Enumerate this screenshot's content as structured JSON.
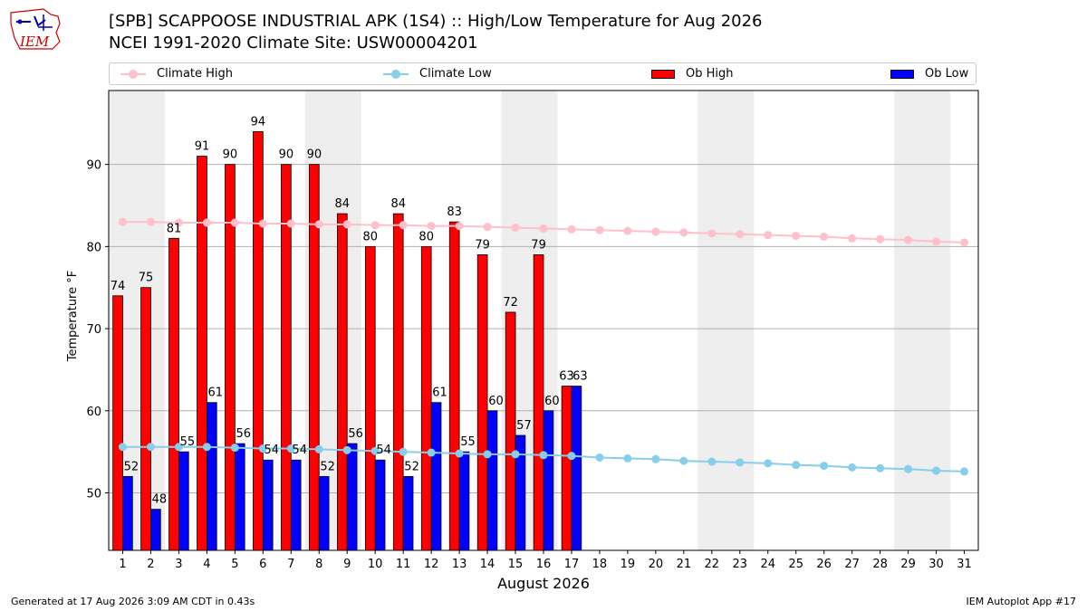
{
  "header": {
    "title_line1": "[SPB] SCAPPOOSE INDUSTRIAL APK (1S4) :: High/Low Temperature for Aug 2026",
    "title_line2": "NCEI 1991-2020 Climate Site: USW00004201",
    "logo_text": "IEM"
  },
  "footer": {
    "left": "Generated at 17 Aug 2026 3:09 AM CDT in 0.43s",
    "right": "IEM Autoplot App #17"
  },
  "colors": {
    "ob_high": "#ff0000",
    "ob_low": "#0000ff",
    "climate_high": "#ffc0cb",
    "climate_low": "#87ceeb",
    "weekend_band": "#eeeeee",
    "grid": "#b0b0b0"
  },
  "legend": {
    "climate_high": "Climate High",
    "climate_low": "Climate Low",
    "ob_high": "Ob High",
    "ob_low": "Ob Low"
  },
  "chart_data": {
    "type": "bar",
    "xlabel": "August 2026",
    "ylabel": "Temperature °F",
    "ylim": [
      43,
      99
    ],
    "yticks": [
      50,
      60,
      70,
      80,
      90
    ],
    "grid": "horizontal",
    "legend_position": "top",
    "days": [
      1,
      2,
      3,
      4,
      5,
      6,
      7,
      8,
      9,
      10,
      11,
      12,
      13,
      14,
      15,
      16,
      17,
      18,
      19,
      20,
      21,
      22,
      23,
      24,
      25,
      26,
      27,
      28,
      29,
      30,
      31
    ],
    "weekend_bands": [
      [
        1,
        2
      ],
      [
        8,
        9
      ],
      [
        15,
        16
      ],
      [
        22,
        23
      ],
      [
        29,
        30
      ]
    ],
    "series": [
      {
        "name": "Ob High",
        "type": "bar",
        "values": [
          74,
          75,
          81,
          91,
          90,
          94,
          90,
          90,
          84,
          80,
          84,
          80,
          83,
          79,
          72,
          79,
          63
        ]
      },
      {
        "name": "Ob Low",
        "type": "bar",
        "values": [
          52,
          48,
          55,
          61,
          56,
          54,
          54,
          52,
          56,
          54,
          52,
          61,
          55,
          60,
          57,
          60,
          63
        ]
      },
      {
        "name": "Climate High",
        "type": "line",
        "values": [
          83.0,
          83.0,
          82.9,
          82.9,
          82.9,
          82.8,
          82.8,
          82.7,
          82.7,
          82.6,
          82.6,
          82.5,
          82.5,
          82.4,
          82.3,
          82.2,
          82.1,
          82.0,
          81.9,
          81.8,
          81.7,
          81.6,
          81.5,
          81.4,
          81.3,
          81.2,
          81.0,
          80.9,
          80.8,
          80.6,
          80.5
        ]
      },
      {
        "name": "Climate Low",
        "type": "line",
        "values": [
          55.6,
          55.6,
          55.6,
          55.6,
          55.5,
          55.4,
          55.4,
          55.3,
          55.2,
          55.1,
          55.0,
          54.9,
          54.8,
          54.7,
          54.7,
          54.6,
          54.5,
          54.3,
          54.2,
          54.1,
          53.9,
          53.8,
          53.7,
          53.6,
          53.4,
          53.3,
          53.1,
          53.0,
          52.9,
          52.7,
          52.6
        ]
      }
    ]
  }
}
